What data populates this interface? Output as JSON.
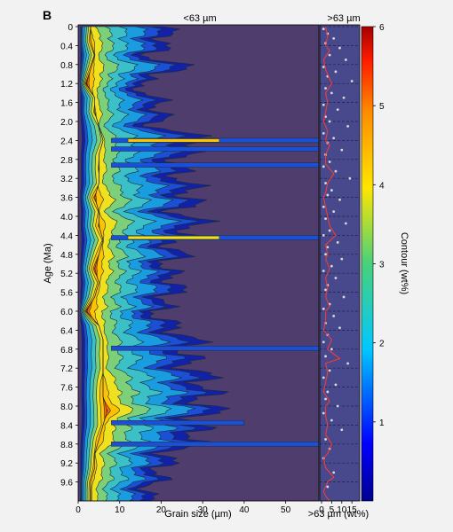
{
  "panel_label": "B",
  "colors": {
    "background": "#f2f2f2",
    "plot_background": "#4f3d6e",
    "right_panel_background": "#48488c",
    "contour_line": "#1f2a33",
    "line_color": "#ff3b30",
    "dot_color": "#d9d9d9"
  },
  "chart_data": [
    {
      "type": "contour",
      "title": "<63 µm",
      "xlabel": "Grain size (µm)",
      "ylabel": "Age (Ma)",
      "xlim": [
        0,
        58
      ],
      "ylim": [
        0,
        10
      ],
      "y_inverted": true,
      "xticks": [
        "0",
        "10",
        "20",
        "30",
        "40",
        "50"
      ],
      "yticks": [
        "0",
        "0.4",
        "0.8",
        "1.2",
        "1.6",
        "2.0",
        "2.4",
        "2.8",
        "3.2",
        "3.6",
        "4.0",
        "4.4",
        "4.8",
        "5.2",
        "5.6",
        "6.0",
        "6.4",
        "6.8",
        "7.2",
        "7.6",
        "8.0",
        "8.4",
        "8.8",
        "9.2",
        "9.6"
      ],
      "contour_levels": [
        0.25,
        0.75,
        1.25,
        2.0,
        2.75,
        3.5,
        4.25,
        5.0,
        5.5
      ],
      "grain_size_mode_um": [
        {
          "age": 0.0,
          "mode": 3,
          "peak": 4.2,
          "tail": 22
        },
        {
          "age": 0.3,
          "mode": 3,
          "peak": 5.0,
          "tail": 24
        },
        {
          "age": 0.6,
          "mode": 4,
          "peak": 4.4,
          "tail": 18
        },
        {
          "age": 0.9,
          "mode": 3,
          "peak": 4.8,
          "tail": 28
        },
        {
          "age": 1.2,
          "mode": 2,
          "peak": 5.8,
          "tail": 14
        },
        {
          "age": 1.5,
          "mode": 4,
          "peak": 4.0,
          "tail": 20
        },
        {
          "age": 1.8,
          "mode": 4,
          "peak": 4.6,
          "tail": 22
        },
        {
          "age": 2.1,
          "mode": 5,
          "peak": 3.6,
          "tail": 20
        },
        {
          "age": 2.4,
          "mode": 6,
          "peak": 3.8,
          "tail": 34
        },
        {
          "age": 2.7,
          "mode": 5,
          "peak": 4.2,
          "tail": 28
        },
        {
          "age": 3.0,
          "mode": 5,
          "peak": 4.4,
          "tail": 26
        },
        {
          "age": 3.3,
          "mode": 5,
          "peak": 4.0,
          "tail": 28
        },
        {
          "age": 3.6,
          "mode": 4,
          "peak": 5.4,
          "tail": 30
        },
        {
          "age": 3.9,
          "mode": 5,
          "peak": 4.4,
          "tail": 26
        },
        {
          "age": 4.2,
          "mode": 5,
          "peak": 5.2,
          "tail": 32
        },
        {
          "age": 4.5,
          "mode": 6,
          "peak": 4.4,
          "tail": 24
        },
        {
          "age": 4.8,
          "mode": 5,
          "peak": 5.0,
          "tail": 26
        },
        {
          "age": 5.1,
          "mode": 4,
          "peak": 5.6,
          "tail": 22
        },
        {
          "age": 5.4,
          "mode": 5,
          "peak": 4.6,
          "tail": 26
        },
        {
          "age": 5.7,
          "mode": 4,
          "peak": 4.8,
          "tail": 24
        },
        {
          "age": 6.0,
          "mode": 2,
          "peak": 5.8,
          "tail": 20
        },
        {
          "age": 6.3,
          "mode": 5,
          "peak": 4.2,
          "tail": 24
        },
        {
          "age": 6.6,
          "mode": 6,
          "peak": 4.0,
          "tail": 30
        },
        {
          "age": 6.9,
          "mode": 6,
          "peak": 4.2,
          "tail": 28
        },
        {
          "age": 7.2,
          "mode": 6,
          "peak": 4.0,
          "tail": 30
        },
        {
          "age": 7.5,
          "mode": 6,
          "peak": 4.8,
          "tail": 34
        },
        {
          "age": 7.8,
          "mode": 6,
          "peak": 5.0,
          "tail": 32
        },
        {
          "age": 8.1,
          "mode": 7,
          "peak": 5.6,
          "tail": 34
        },
        {
          "age": 8.4,
          "mode": 6,
          "peak": 4.6,
          "tail": 30
        },
        {
          "age": 8.7,
          "mode": 5,
          "peak": 5.0,
          "tail": 32
        },
        {
          "age": 9.0,
          "mode": 4,
          "peak": 4.4,
          "tail": 24
        },
        {
          "age": 9.3,
          "mode": 4,
          "peak": 4.8,
          "tail": 22
        },
        {
          "age": 9.6,
          "mode": 3,
          "peak": 4.8,
          "tail": 20
        },
        {
          "age": 9.8,
          "mode": 3,
          "peak": 4.6,
          "tail": 18
        }
      ],
      "spikes": [
        {
          "age": 2.4,
          "extent": 58,
          "level": 4.5
        },
        {
          "age": 2.58,
          "extent": 58,
          "level": 1.5
        },
        {
          "age": 2.92,
          "extent": 58,
          "level": 1.2
        },
        {
          "age": 4.45,
          "extent": 58,
          "level": 3.2
        },
        {
          "age": 6.78,
          "extent": 58,
          "level": 1.2
        },
        {
          "age": 8.35,
          "extent": 40,
          "level": 1.0
        },
        {
          "age": 8.8,
          "extent": 58,
          "level": 1.0
        }
      ]
    },
    {
      "type": "line",
      "title": ">63 µm",
      "xlabel": ">63 µm (wt%)",
      "xticks": [
        "0",
        "5",
        "10",
        "15"
      ],
      "xlim": [
        0,
        18
      ],
      "series": [
        {
          "x": [
            2,
            3,
            2,
            4,
            1,
            2,
            3,
            5,
            2,
            3,
            2,
            1,
            3,
            2,
            4,
            2,
            2,
            6,
            3,
            2,
            1,
            2,
            3,
            4,
            7,
            2,
            3,
            2,
            4,
            2,
            3,
            2,
            4,
            2,
            2,
            1,
            5,
            3,
            9,
            2,
            3,
            2,
            1,
            4,
            2,
            2,
            3,
            2,
            5,
            3,
            1,
            2,
            6,
            3,
            2,
            1,
            2,
            4,
            3,
            2
          ],
          "y": [
            0.0,
            0.2,
            0.4,
            0.5,
            0.7,
            0.9,
            1.0,
            1.2,
            1.4,
            1.6,
            1.8,
            2.0,
            2.2,
            2.4,
            2.5,
            2.7,
            2.9,
            3.1,
            3.3,
            3.5,
            3.6,
            3.8,
            4.0,
            4.2,
            4.4,
            4.6,
            4.8,
            4.9,
            5.1,
            5.3,
            5.5,
            5.7,
            5.9,
            6.0,
            6.2,
            6.4,
            6.6,
            6.8,
            7.0,
            7.1,
            7.3,
            7.5,
            7.7,
            7.9,
            8.0,
            8.2,
            8.4,
            8.6,
            8.8,
            9.0,
            9.1,
            9.3,
            9.5,
            9.6,
            9.7,
            9.8,
            9.9,
            10.0,
            10.0,
            10.0
          ]
        }
      ],
      "points": {
        "x": [
          1,
          3,
          6,
          2,
          9,
          4,
          12,
          1,
          7,
          3,
          15,
          2,
          5,
          11,
          1,
          8,
          2,
          4,
          13,
          1,
          6,
          3,
          10,
          2,
          4,
          1,
          7,
          14,
          2,
          5,
          3,
          9,
          1,
          6,
          2,
          12,
          4,
          1,
          8,
          3,
          2,
          10,
          5,
          1,
          7,
          3,
          2,
          11,
          4,
          1,
          6,
          2,
          9,
          3,
          1,
          5,
          2,
          13,
          4,
          1,
          7,
          3,
          2,
          8,
          1,
          5,
          10,
          2,
          4,
          1,
          6,
          3
        ],
        "y": [
          0.05,
          0.15,
          0.25,
          0.35,
          0.45,
          0.6,
          0.7,
          0.85,
          0.95,
          1.05,
          1.15,
          1.3,
          1.4,
          1.5,
          1.65,
          1.75,
          1.9,
          2.0,
          2.1,
          2.25,
          2.35,
          2.45,
          2.6,
          2.7,
          2.85,
          2.95,
          3.05,
          3.2,
          3.3,
          3.45,
          3.55,
          3.65,
          3.8,
          3.9,
          4.05,
          4.15,
          4.3,
          4.4,
          4.55,
          4.65,
          4.8,
          4.9,
          5.05,
          5.15,
          5.3,
          5.45,
          5.55,
          5.7,
          5.85,
          5.95,
          6.1,
          6.25,
          6.35,
          6.5,
          6.65,
          6.8,
          6.95,
          7.1,
          7.25,
          7.4,
          7.55,
          7.7,
          7.85,
          8.0,
          8.15,
          8.3,
          8.5,
          8.7,
          8.9,
          9.1,
          9.4,
          9.7
        ]
      }
    },
    {
      "type": "colorbar",
      "label": "Contour (wt%)",
      "range": [
        0,
        6
      ],
      "ticks": [
        "1",
        "2",
        "3",
        "4",
        "5",
        "6"
      ]
    }
  ]
}
